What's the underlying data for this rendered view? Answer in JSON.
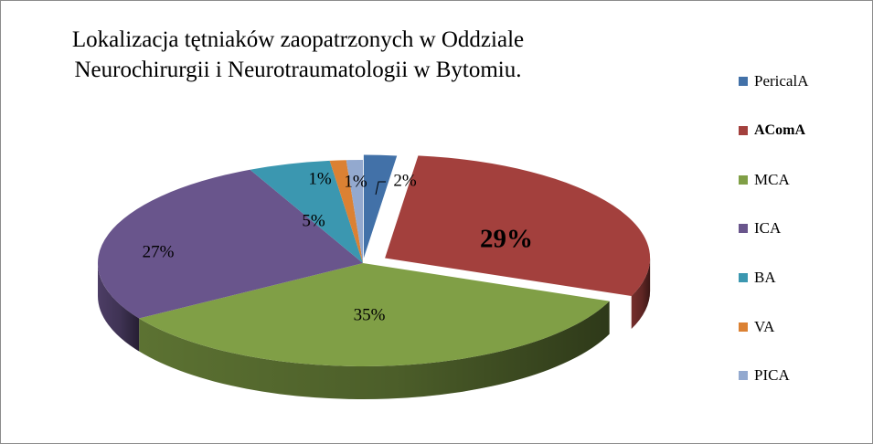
{
  "chart_data": {
    "type": "pie",
    "title_lines": [
      "Lokalizacja  tętniaków  zaopatrzonych  w Oddziale",
      "Neurochirurgii  i Neurotraumatologii  w Bytomiu."
    ],
    "categories": [
      "PericalA",
      "AComA",
      "MCA",
      "ICA",
      "BA",
      "VA",
      "PICA"
    ],
    "values": [
      2,
      29,
      35,
      27,
      5,
      1,
      1
    ],
    "data_labels": [
      "2%",
      "29%",
      "35%",
      "27%",
      "5%",
      "1%",
      "1%"
    ],
    "colors": [
      "#4271a8",
      "#a3403d",
      "#809f46",
      "#69558c",
      "#3b97b0",
      "#db8133",
      "#93a9cf"
    ],
    "exploded": [
      "PericalA",
      "AComA"
    ],
    "legend_position": "right",
    "style": "3d"
  }
}
